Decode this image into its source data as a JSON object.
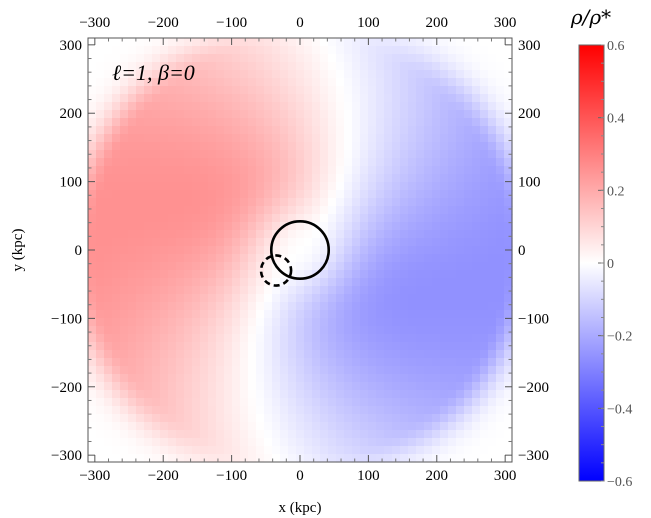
{
  "chart_data": {
    "type": "heatmap",
    "annotation": "ℓ=1, β=0",
    "xlabel": "x (kpc)",
    "ylabel": "y (kpc)",
    "xlim": [
      -310,
      310
    ],
    "ylim": [
      -310,
      310
    ],
    "xticks": [
      -300,
      -200,
      -100,
      0,
      100,
      200,
      300
    ],
    "yticks": [
      -300,
      -200,
      -100,
      0,
      100,
      200,
      300
    ],
    "x_tick_labels": [
      "−300",
      "−200",
      "−100",
      "0",
      "100",
      "200",
      "300"
    ],
    "y_tick_labels": [
      "−300",
      "−200",
      "−100",
      "0",
      "100",
      "200",
      "300"
    ],
    "field": {
      "description": "dipole density perturbation with spiral twist",
      "max_abs_value": 0.26,
      "positive_direction": "upper-left",
      "negative_direction": "lower-right"
    },
    "circles": [
      {
        "name": "host",
        "center_x": 0,
        "center_y": 0,
        "radius": 42,
        "style": "solid"
      },
      {
        "name": "satellite",
        "center_x": -35,
        "center_y": -30,
        "radius": 22,
        "style": "dashed"
      }
    ],
    "colorbar": {
      "title": "ρ/ρ*",
      "range": [
        -0.6,
        0.6
      ],
      "ticks": [
        0.6,
        0.4,
        0.2,
        0,
        -0.2,
        -0.4,
        -0.6
      ],
      "tick_labels": [
        "0.6",
        "0.4",
        "0.2",
        "0",
        "−0.2",
        "−0.4",
        "−0.6"
      ],
      "colors": {
        "positive": "#ff0000",
        "zero": "#ffffff",
        "negative": "#0000ff"
      }
    },
    "grid": false
  }
}
